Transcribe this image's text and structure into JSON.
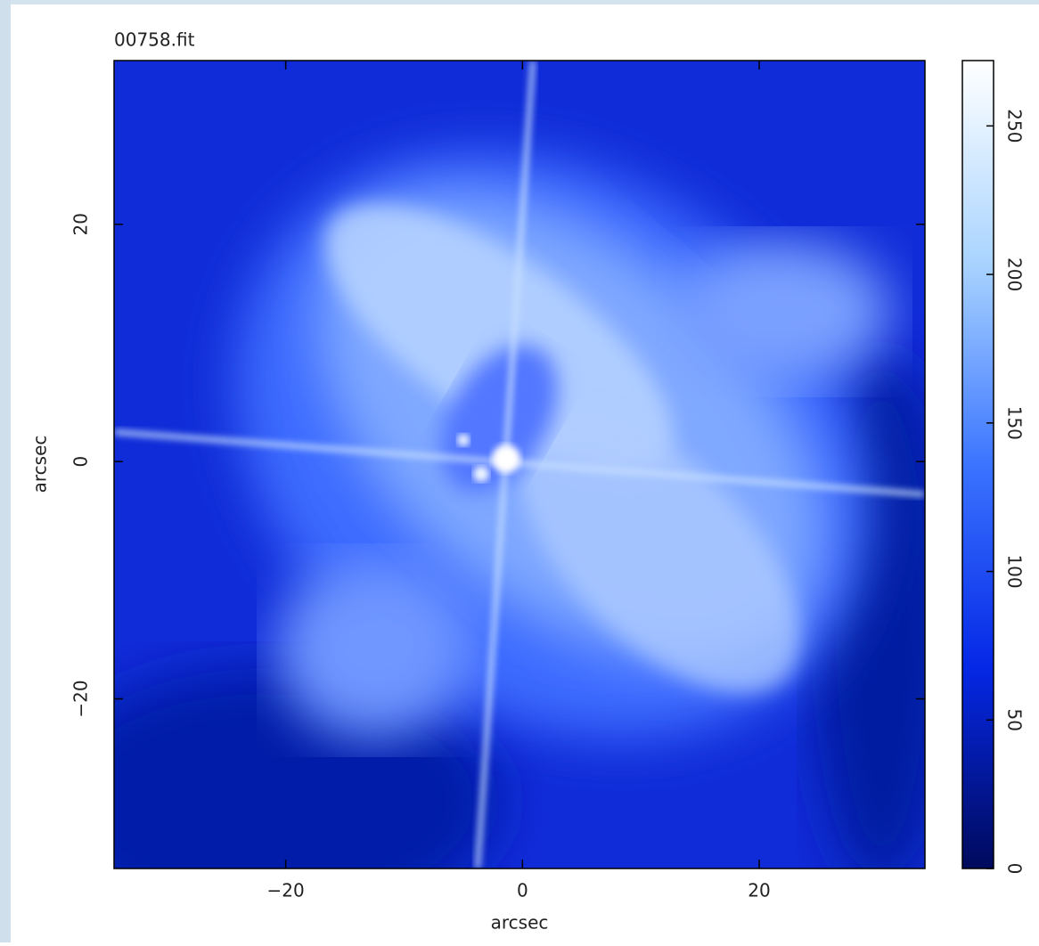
{
  "chart_data": {
    "type": "image",
    "title": "00758.fit",
    "xlabel": "arcsec",
    "ylabel": "arcsec",
    "xlim": [
      -34.5,
      34
    ],
    "xticks": [
      {
        "value": -20,
        "label": "−20"
      },
      0,
      20
    ],
    "ylim": [
      -34.3,
      33.8
    ],
    "yticks": [
      {
        "value": -20,
        "label": "−20"
      },
      0,
      20
    ],
    "clim": [
      0,
      272
    ],
    "cticks": [
      0,
      50,
      100,
      150,
      200,
      250
    ],
    "colormap": [
      "#000a5c",
      "#0528e6",
      "#3b74ff",
      "#a9d4ff",
      "#ffffff"
    ]
  }
}
